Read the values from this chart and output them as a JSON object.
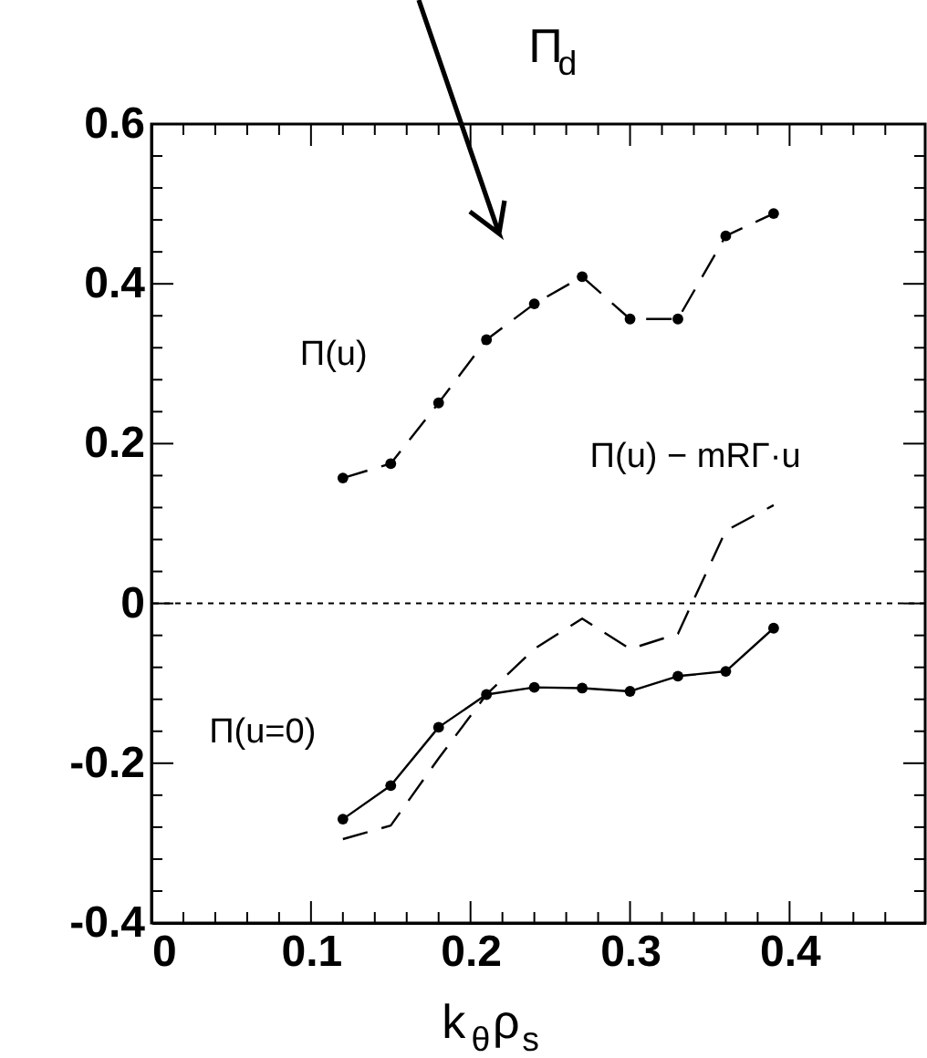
{
  "chart_data": {
    "type": "line",
    "xlabel": "k$_{θ}$ρ$_{s}$",
    "xlim": [
      0,
      0.485
    ],
    "xticks": [
      0,
      0.1,
      0.2,
      0.3,
      0.4,
      {
        "value": 0.02,
        "label": null
      },
      {
        "value": 0.04,
        "label": null
      },
      {
        "value": 0.06,
        "label": null
      },
      {
        "value": 0.08,
        "label": null
      },
      {
        "value": 0.12,
        "label": null
      },
      {
        "value": 0.14,
        "label": null
      },
      {
        "value": 0.16,
        "label": null
      },
      {
        "value": 0.18,
        "label": null
      },
      {
        "value": 0.22,
        "label": null
      },
      {
        "value": 0.24,
        "label": null
      },
      {
        "value": 0.26,
        "label": null
      },
      {
        "value": 0.28,
        "label": null
      },
      {
        "value": 0.32,
        "label": null
      },
      {
        "value": 0.34,
        "label": null
      },
      {
        "value": 0.36,
        "label": null
      },
      {
        "value": 0.38,
        "label": null
      },
      {
        "value": 0.42,
        "label": null
      },
      {
        "value": 0.44,
        "label": null
      },
      {
        "value": 0.46,
        "label": null
      }
    ],
    "ylim": [
      -0.4,
      0.6
    ],
    "yticks": [
      -0.4,
      -0.2,
      0,
      0.2,
      0.4,
      0.6,
      {
        "value": -0.36,
        "label": null
      },
      {
        "value": -0.32,
        "label": null
      },
      {
        "value": -0.28,
        "label": null
      },
      {
        "value": -0.24,
        "label": null
      },
      {
        "value": -0.16,
        "label": null
      },
      {
        "value": -0.12,
        "label": null
      },
      {
        "value": -0.08,
        "label": null
      },
      {
        "value": -0.04,
        "label": null
      },
      {
        "value": 0.04,
        "label": null
      },
      {
        "value": 0.08,
        "label": null
      },
      {
        "value": 0.12,
        "label": null
      },
      {
        "value": 0.16,
        "label": null
      },
      {
        "value": 0.24,
        "label": null
      },
      {
        "value": 0.28,
        "label": null
      },
      {
        "value": 0.32,
        "label": null
      },
      {
        "value": 0.36,
        "label": null
      },
      {
        "value": 0.44,
        "label": null
      },
      {
        "value": 0.48,
        "label": null
      },
      {
        "value": 0.52,
        "label": null
      },
      {
        "value": 0.56,
        "label": null
      }
    ],
    "x": [
      0.12,
      0.15,
      0.18,
      0.21,
      0.24,
      0.27,
      0.3,
      0.33,
      0.36,
      0.39
    ],
    "series": [
      {
        "name": "Π(u)",
        "color": "#000000",
        "line_style": "dashed",
        "marker": "circle",
        "values": [
          0.157,
          0.175,
          0.251,
          0.33,
          0.375,
          0.409,
          0.356,
          0.356,
          0.46,
          0.488
        ]
      },
      {
        "name": "Π(u) − mRΓ·u",
        "color": "#000000",
        "line_style": "dashed",
        "marker": "none",
        "values": [
          -0.295,
          -0.278,
          -0.194,
          -0.114,
          -0.057,
          -0.019,
          -0.057,
          -0.038,
          0.091,
          0.123
        ]
      },
      {
        "name": "Π(u=0)",
        "color": "#000000",
        "line_style": "solid",
        "marker": "circle",
        "values": [
          -0.27,
          -0.228,
          -0.155,
          -0.114,
          -0.105,
          -0.106,
          -0.11,
          -0.091,
          -0.085,
          -0.031
        ]
      }
    ],
    "ref_lines": [
      {
        "axis": "y",
        "value": 0,
        "line_style": "dotted",
        "color": "#000000"
      }
    ],
    "annotations": [
      "Π$_{d}$"
    ],
    "grid": false
  }
}
